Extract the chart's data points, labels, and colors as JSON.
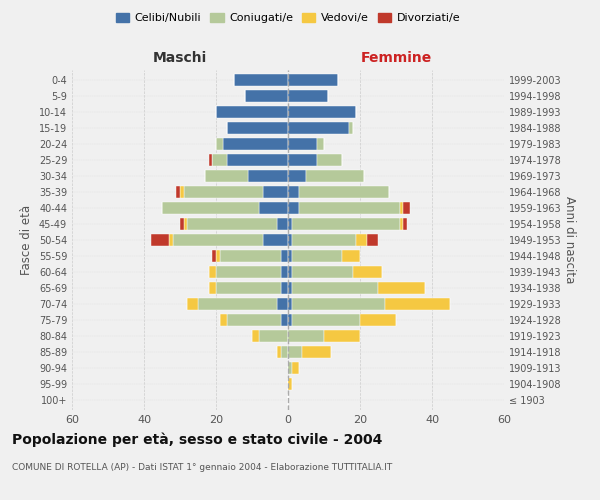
{
  "age_groups": [
    "100+",
    "95-99",
    "90-94",
    "85-89",
    "80-84",
    "75-79",
    "70-74",
    "65-69",
    "60-64",
    "55-59",
    "50-54",
    "45-49",
    "40-44",
    "35-39",
    "30-34",
    "25-29",
    "20-24",
    "15-19",
    "10-14",
    "5-9",
    "0-4"
  ],
  "birth_years": [
    "≤ 1903",
    "1904-1908",
    "1909-1913",
    "1914-1918",
    "1919-1923",
    "1924-1928",
    "1929-1933",
    "1934-1938",
    "1939-1943",
    "1944-1948",
    "1949-1953",
    "1954-1958",
    "1959-1963",
    "1964-1968",
    "1969-1973",
    "1974-1978",
    "1979-1983",
    "1984-1988",
    "1989-1993",
    "1994-1998",
    "1999-2003"
  ],
  "colors": {
    "celibi": "#4472a8",
    "coniugati": "#b5c99a",
    "vedovi": "#f5c842",
    "divorziati": "#c0392b"
  },
  "maschi": {
    "celibi": [
      0,
      0,
      0,
      0,
      0,
      2,
      3,
      2,
      2,
      2,
      7,
      3,
      8,
      7,
      11,
      17,
      18,
      17,
      20,
      12,
      15
    ],
    "coniugati": [
      0,
      0,
      0,
      2,
      8,
      15,
      22,
      18,
      18,
      17,
      25,
      25,
      27,
      22,
      12,
      4,
      2,
      0,
      0,
      0,
      0
    ],
    "vedovi": [
      0,
      0,
      0,
      1,
      2,
      2,
      3,
      2,
      2,
      1,
      1,
      1,
      0,
      1,
      0,
      0,
      0,
      0,
      0,
      0,
      0
    ],
    "divorziati": [
      0,
      0,
      0,
      0,
      0,
      0,
      0,
      0,
      0,
      1,
      5,
      1,
      0,
      1,
      0,
      1,
      0,
      0,
      0,
      0,
      0
    ]
  },
  "femmine": {
    "celibi": [
      0,
      0,
      0,
      0,
      0,
      1,
      1,
      1,
      1,
      1,
      1,
      1,
      3,
      3,
      5,
      8,
      8,
      17,
      19,
      11,
      14
    ],
    "coniugati": [
      0,
      0,
      1,
      4,
      10,
      19,
      26,
      24,
      17,
      14,
      18,
      30,
      28,
      25,
      16,
      7,
      2,
      1,
      0,
      0,
      0
    ],
    "vedovi": [
      0,
      1,
      2,
      8,
      10,
      10,
      18,
      13,
      8,
      5,
      3,
      1,
      1,
      0,
      0,
      0,
      0,
      0,
      0,
      0,
      0
    ],
    "divorziati": [
      0,
      0,
      0,
      0,
      0,
      0,
      0,
      0,
      0,
      0,
      3,
      1,
      2,
      0,
      0,
      0,
      0,
      0,
      0,
      0,
      0
    ]
  },
  "xlim": 60,
  "title": "Popolazione per età, sesso e stato civile - 2004",
  "subtitle": "COMUNE DI ROTELLA (AP) - Dati ISTAT 1° gennaio 2004 - Elaborazione TUTTITALIA.IT",
  "ylabel_left": "Fasce di età",
  "ylabel_right": "Anni di nascita",
  "xlabel_maschi": "Maschi",
  "xlabel_femmine": "Femmine",
  "legend_labels": [
    "Celibi/Nubili",
    "Coniugati/e",
    "Vedovi/e",
    "Divorziati/e"
  ],
  "bg_color": "#f0f0f0",
  "maschi_label_color": "#333333",
  "femmine_label_color": "#cc2222"
}
